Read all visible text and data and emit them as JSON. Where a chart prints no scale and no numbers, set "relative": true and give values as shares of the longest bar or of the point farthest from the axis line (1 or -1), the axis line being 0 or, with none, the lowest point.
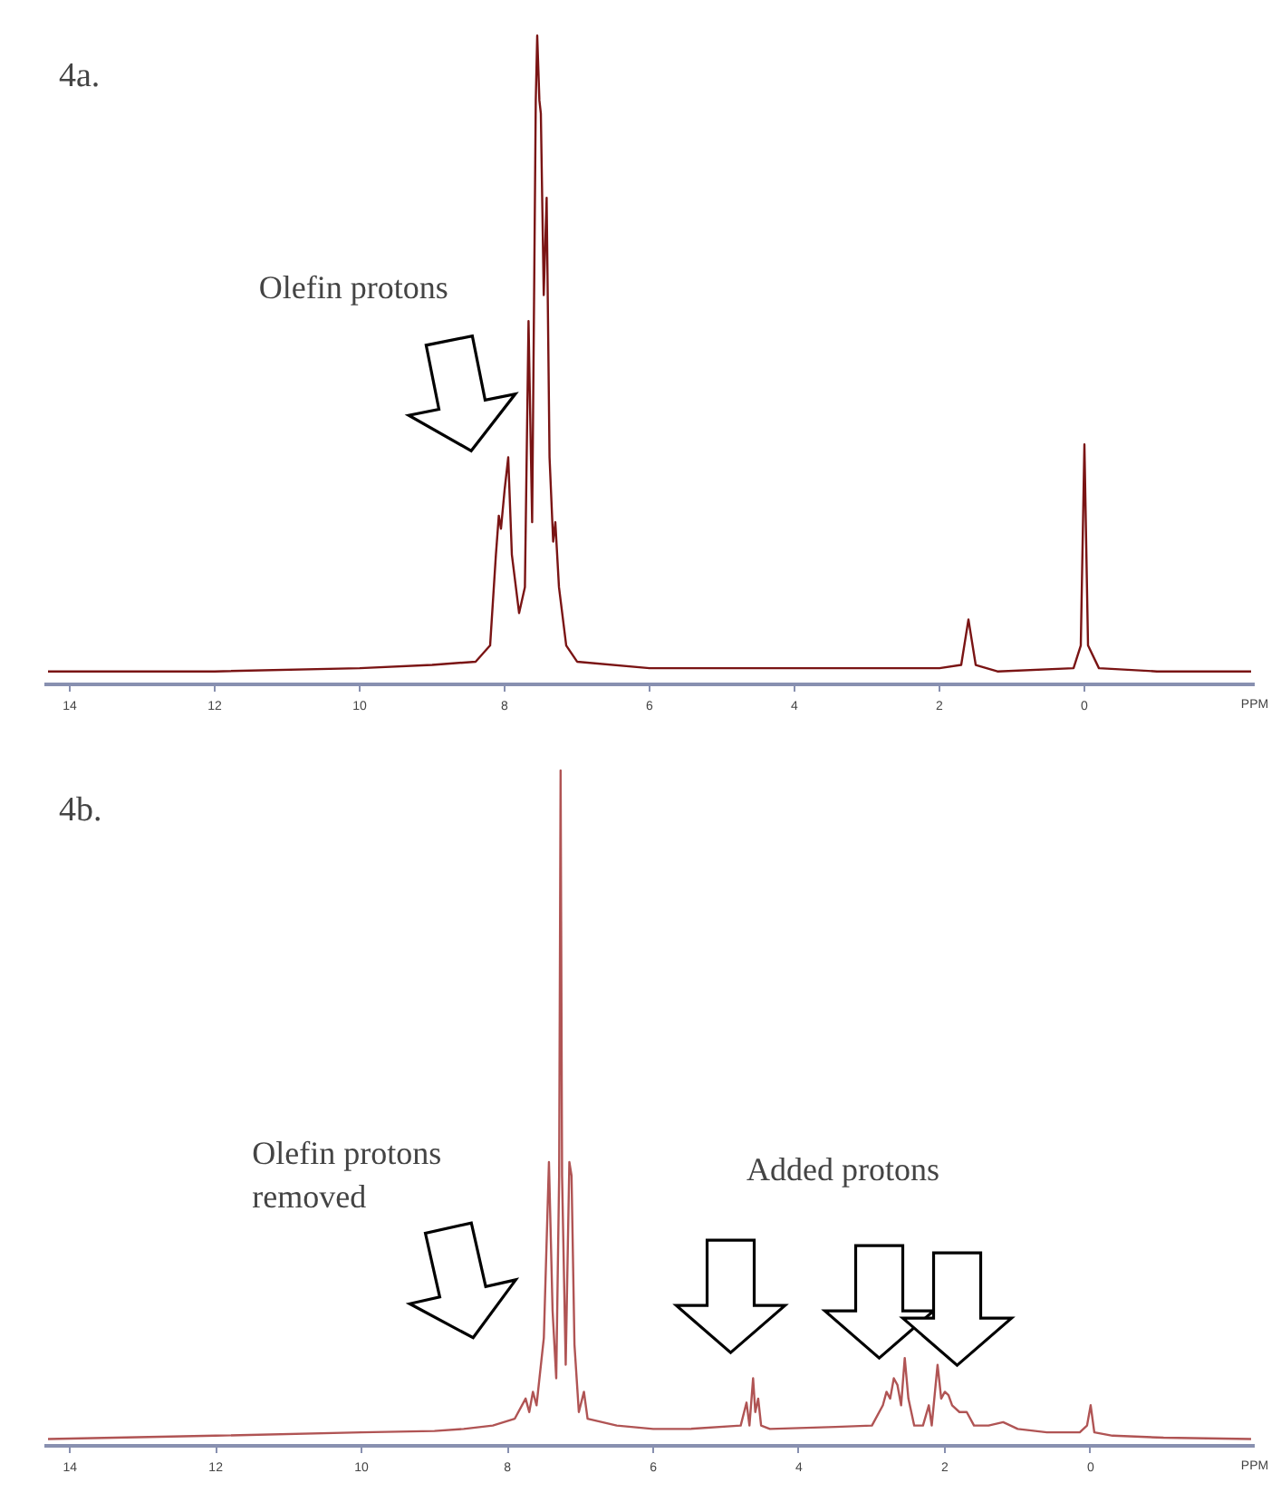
{
  "chart_data": [
    {
      "type": "line",
      "title": "4a.",
      "xlabel": "PPM",
      "relative": true,
      "xlim": [
        14.35,
        -2.35
      ],
      "xticks": [
        14,
        12,
        10,
        8,
        6,
        4,
        2,
        0
      ],
      "grid": false,
      "annotations": [
        "Olefin protons"
      ],
      "series": [
        {
          "color": "#7a1414",
          "x": [
            14.3,
            12,
            10,
            9,
            8.4,
            8.2,
            8.12,
            8.08,
            8.05,
            8.0,
            7.95,
            7.9,
            7.8,
            7.72,
            7.67,
            7.62,
            7.57,
            7.55,
            7.52,
            7.5,
            7.46,
            7.42,
            7.38,
            7.33,
            7.3,
            7.25,
            7.15,
            7.0,
            6,
            4,
            2,
            1.7,
            1.6,
            1.5,
            1.2,
            0.15,
            0.05,
            0,
            -0.05,
            -0.2,
            -1,
            -2.3
          ],
          "values": [
            0.02,
            0.02,
            0.025,
            0.03,
            0.035,
            0.06,
            0.2,
            0.26,
            0.24,
            0.3,
            0.35,
            0.2,
            0.11,
            0.15,
            0.56,
            0.25,
            0.9,
            1.0,
            0.9,
            0.88,
            0.6,
            0.75,
            0.35,
            0.22,
            0.25,
            0.15,
            0.06,
            0.035,
            0.025,
            0.025,
            0.025,
            0.03,
            0.1,
            0.03,
            0.02,
            0.025,
            0.06,
            0.37,
            0.06,
            0.025,
            0.02,
            0.02
          ]
        }
      ]
    },
    {
      "type": "line",
      "title": "4b.",
      "xlabel": "PPM",
      "relative": true,
      "xlim": [
        14.35,
        -2.25
      ],
      "xticks": [
        14,
        12,
        10,
        8,
        6,
        4,
        2,
        0
      ],
      "grid": false,
      "annotations": [
        "Olefin protons\nremoved",
        "Added protons"
      ],
      "series": [
        {
          "color": "#b05454",
          "x": [
            14.3,
            12,
            10,
            9,
            8.6,
            8.2,
            7.9,
            7.75,
            7.7,
            7.65,
            7.6,
            7.5,
            7.43,
            7.38,
            7.33,
            7.29,
            7.27,
            7.25,
            7.2,
            7.15,
            7.12,
            7.08,
            7.02,
            6.95,
            6.9,
            6.5,
            6,
            5.5,
            4.8,
            4.72,
            4.68,
            4.63,
            4.6,
            4.56,
            4.52,
            4.4,
            3.5,
            3.0,
            2.85,
            2.8,
            2.75,
            2.7,
            2.65,
            2.6,
            2.55,
            2.5,
            2.42,
            2.3,
            2.22,
            2.18,
            2.1,
            2.05,
            2.0,
            1.95,
            1.9,
            1.8,
            1.7,
            1.6,
            1.4,
            1.2,
            1.0,
            0.6,
            0.15,
            0.05,
            0,
            -0.05,
            -0.3,
            -1,
            -2.2
          ],
          "values": [
            0.01,
            0.015,
            0.02,
            0.022,
            0.025,
            0.03,
            0.04,
            0.07,
            0.05,
            0.08,
            0.06,
            0.16,
            0.42,
            0.2,
            0.1,
            0.4,
            1.0,
            0.4,
            0.12,
            0.42,
            0.4,
            0.15,
            0.05,
            0.08,
            0.04,
            0.03,
            0.025,
            0.025,
            0.03,
            0.064,
            0.03,
            0.1,
            0.05,
            0.07,
            0.03,
            0.025,
            0.028,
            0.03,
            0.06,
            0.08,
            0.07,
            0.1,
            0.09,
            0.06,
            0.13,
            0.07,
            0.03,
            0.03,
            0.06,
            0.03,
            0.12,
            0.07,
            0.08,
            0.075,
            0.06,
            0.05,
            0.05,
            0.03,
            0.03,
            0.035,
            0.025,
            0.02,
            0.02,
            0.03,
            0.06,
            0.02,
            0.015,
            0.012,
            0.01
          ]
        }
      ]
    }
  ]
}
